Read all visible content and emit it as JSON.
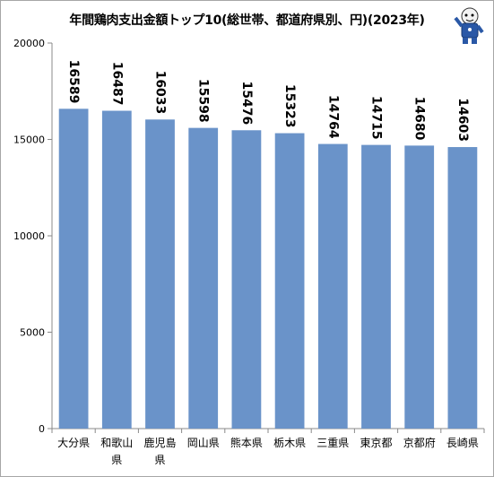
{
  "chart_data": {
    "type": "bar",
    "title": "年間鶏肉支出金額トップ10(総世帯、都道府県別、円)(2023年)",
    "categories": [
      "大分県",
      "和歌山県",
      "鹿児島県",
      "岡山県",
      "熊本県",
      "栃木県",
      "三重県",
      "東京都",
      "京都府",
      "長崎県"
    ],
    "category_lines": [
      [
        "大分県"
      ],
      [
        "和歌山",
        "県"
      ],
      [
        "鹿児島",
        "県"
      ],
      [
        "岡山県"
      ],
      [
        "熊本県"
      ],
      [
        "栃木県"
      ],
      [
        "三重県"
      ],
      [
        "東京都"
      ],
      [
        "京都府"
      ],
      [
        "長崎県"
      ]
    ],
    "values": [
      16589,
      16487,
      16033,
      15598,
      15476,
      15323,
      14764,
      14715,
      14680,
      14603
    ],
    "ylim": [
      0,
      20000
    ],
    "yticks": [
      0,
      5000,
      10000,
      15000,
      20000
    ],
    "xlabel": "",
    "ylabel": "",
    "grid": false,
    "bar_color": "#6a93c9",
    "label_orientation": "vertical"
  },
  "colors": {
    "bar": "#6a93c9",
    "axis": "#898989",
    "frame": "#a6a6a6"
  },
  "mascot": {
    "icon": "mascot-icon"
  }
}
